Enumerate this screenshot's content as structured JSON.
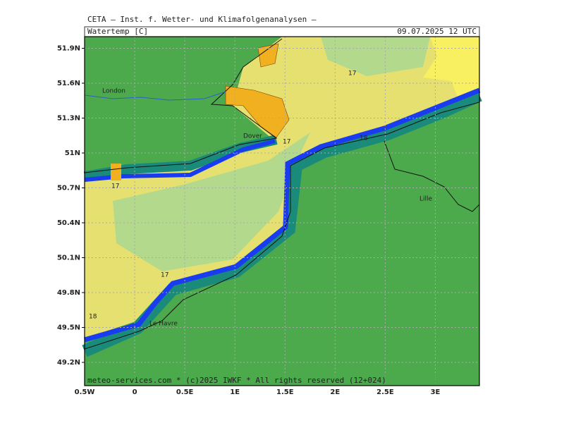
{
  "header": {
    "institution": "CETA — Inst. f. Wetter- und Klimafolgenanalysen —",
    "parameter": "Watertemp [C]",
    "valid_time": "09.07.2025 12 UTC"
  },
  "map": {
    "lonlim": [
      -0.5,
      3.44
    ],
    "latlim": [
      49.0,
      52.0
    ],
    "lon_ticks": [
      {
        "value": -0.5,
        "label": "0.5W"
      },
      0,
      {
        "value": 0.5,
        "label": "0.5E"
      },
      {
        "value": 1,
        "label": "1E"
      },
      {
        "value": 1.5,
        "label": "1.5E"
      },
      {
        "value": 2,
        "label": "2E"
      },
      {
        "value": 2.5,
        "label": "2.5E"
      },
      {
        "value": 3,
        "label": "3E"
      }
    ],
    "lat_ticks": [
      {
        "value": 51.9,
        "label": "51.9N"
      },
      {
        "value": 51.6,
        "label": "51.6N"
      },
      {
        "value": 51.3,
        "label": "51.3N"
      },
      {
        "value": 51,
        "label": "51N"
      },
      {
        "value": 50.7,
        "label": "50.7N"
      },
      {
        "value": 50.4,
        "label": "50.4N"
      },
      {
        "value": 50.1,
        "label": "50.1N"
      },
      {
        "value": 49.8,
        "label": "49.8N"
      },
      {
        "value": 49.5,
        "label": "49.5N"
      },
      {
        "value": 49.2,
        "label": "49.2N"
      }
    ],
    "places": [
      "London",
      "Dover",
      "Lille",
      "Le Havre"
    ],
    "contour_labels": [
      "17",
      "17",
      "18",
      "17",
      "17",
      "18"
    ],
    "credit": "meteo-services.com * (c)2025 IWKF * All rights reserved (12+024)"
  }
}
